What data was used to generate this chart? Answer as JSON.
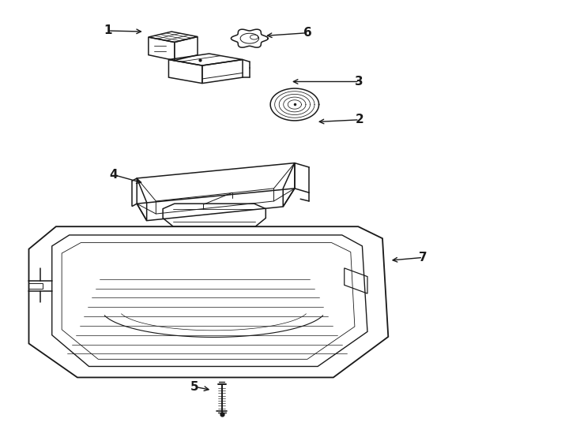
{
  "background_color": "#ffffff",
  "line_color": "#1a1a1a",
  "fig_width": 7.34,
  "fig_height": 5.4,
  "dpi": 100,
  "label_fontsize": 11,
  "labels": {
    "1": {
      "text": [
        0.185,
        0.93
      ],
      "arrow_to": [
        0.248,
        0.928
      ]
    },
    "6": {
      "text": [
        0.53,
        0.925
      ],
      "arrow_to": [
        0.455,
        0.918
      ]
    },
    "3": {
      "text": [
        0.62,
        0.81
      ],
      "arrow_to": [
        0.5,
        0.81
      ]
    },
    "2": {
      "text": [
        0.62,
        0.72
      ],
      "arrow_to": [
        0.545,
        0.715
      ]
    },
    "4": {
      "text": [
        0.195,
        0.59
      ],
      "arrow_to": [
        0.248,
        0.57
      ]
    },
    "5": {
      "text": [
        0.335,
        0.09
      ],
      "arrow_to": [
        0.365,
        0.082
      ]
    },
    "7": {
      "text": [
        0.73,
        0.395
      ],
      "arrow_to": [
        0.672,
        0.388
      ]
    }
  }
}
